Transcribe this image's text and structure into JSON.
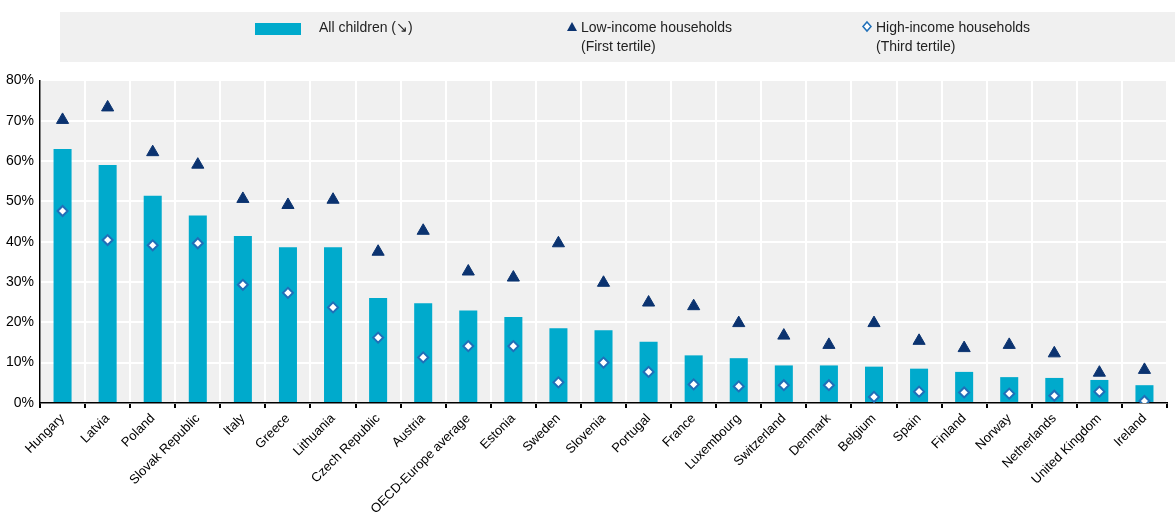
{
  "chart_data": {
    "type": "bar",
    "categories": [
      "Hungary",
      "Latvia",
      "Poland",
      "Slovak Republic",
      "Italy",
      "Greece",
      "Lithuania",
      "Czech Republic",
      "Austria",
      "OECD-Europe average",
      "Estonia",
      "Sweden",
      "Slovenia",
      "Portugal",
      "France",
      "Luxembourg",
      "Switzerland",
      "Denmark",
      "Belgium",
      "Spain",
      "Finland",
      "Norway",
      "Netherlands",
      "United Kingdom",
      "Ireland"
    ],
    "series": [
      {
        "name": "All children (↘)",
        "color": "#00aacc",
        "values": [
          63,
          59,
          51.4,
          46.5,
          41.4,
          38.6,
          38.6,
          26,
          24.7,
          22.9,
          21.3,
          18.5,
          18,
          15.2,
          11.8,
          11.1,
          9.3,
          9.3,
          9,
          8.5,
          7.7,
          6.4,
          6.2,
          5.7,
          4.4
        ]
      },
      {
        "name": "Low-income households\n(First tertile)",
        "type": "scatter",
        "marker": "triangle",
        "color": "#0b3370",
        "x": [
          "Hungary",
          "Latvia",
          "Poland",
          "Slovak Republic",
          "Italy",
          "Greece",
          "Lithuania",
          "Czech Republic",
          "Austria",
          "OECD-Europe average",
          "Estonia",
          "Sweden",
          "Slovenia",
          "Portugal",
          "France",
          "Luxembourg",
          "Switzerland",
          "Denmark",
          "Belgium",
          "Spain",
          "Finland",
          "Norway",
          "Netherlands",
          "United Kingdom",
          "Ireland"
        ],
        "values": [
          70.2,
          73.3,
          62.2,
          59.1,
          50.6,
          49.1,
          50.4,
          37.5,
          42.7,
          32.6,
          31.1,
          39.6,
          29.8,
          24.9,
          24,
          19.8,
          16.7,
          14.4,
          19.8,
          15.4,
          13.6,
          14.4,
          12.3,
          7.5,
          8.2
        ]
      },
      {
        "name": "High-income households\n(Third tertile)",
        "type": "scatter",
        "marker": "diamond",
        "color": "#1f6fb8",
        "x": [
          "Hungary",
          "Latvia",
          "Poland",
          "Slovak Republic",
          "Italy",
          "Greece",
          "Lithuania",
          "Czech Republic",
          "Austria",
          "OECD-Europe average",
          "Estonia",
          "Sweden",
          "Slovenia",
          "Portugal",
          "France",
          "Luxembourg",
          "Switzerland",
          "Denmark",
          "Belgium",
          "Spain",
          "Finland",
          "Norway",
          "Netherlands",
          "United Kingdom",
          "Ireland"
        ],
        "values": [
          47.6,
          40.4,
          39.1,
          39.6,
          29.3,
          27.3,
          23.7,
          16.2,
          11.3,
          14.1,
          14.1,
          5.1,
          10,
          7.7,
          4.6,
          4.1,
          4.4,
          4.4,
          1.5,
          2.8,
          2.6,
          2.3,
          1.8,
          2.8,
          0.5
        ]
      }
    ],
    "ylim": [
      0,
      80
    ],
    "yticks": [
      {
        "value": 0,
        "label": "0%"
      },
      {
        "value": 10,
        "label": "10%"
      },
      {
        "value": 20,
        "label": "20%"
      },
      {
        "value": 30,
        "label": "30%"
      },
      {
        "value": 40,
        "label": "40%"
      },
      {
        "value": 50,
        "label": "50%"
      },
      {
        "value": 60,
        "label": "60%"
      },
      {
        "value": 70,
        "label": "70%"
      },
      {
        "value": 80,
        "label": "80%"
      }
    ],
    "grid": true,
    "legend": "top"
  }
}
